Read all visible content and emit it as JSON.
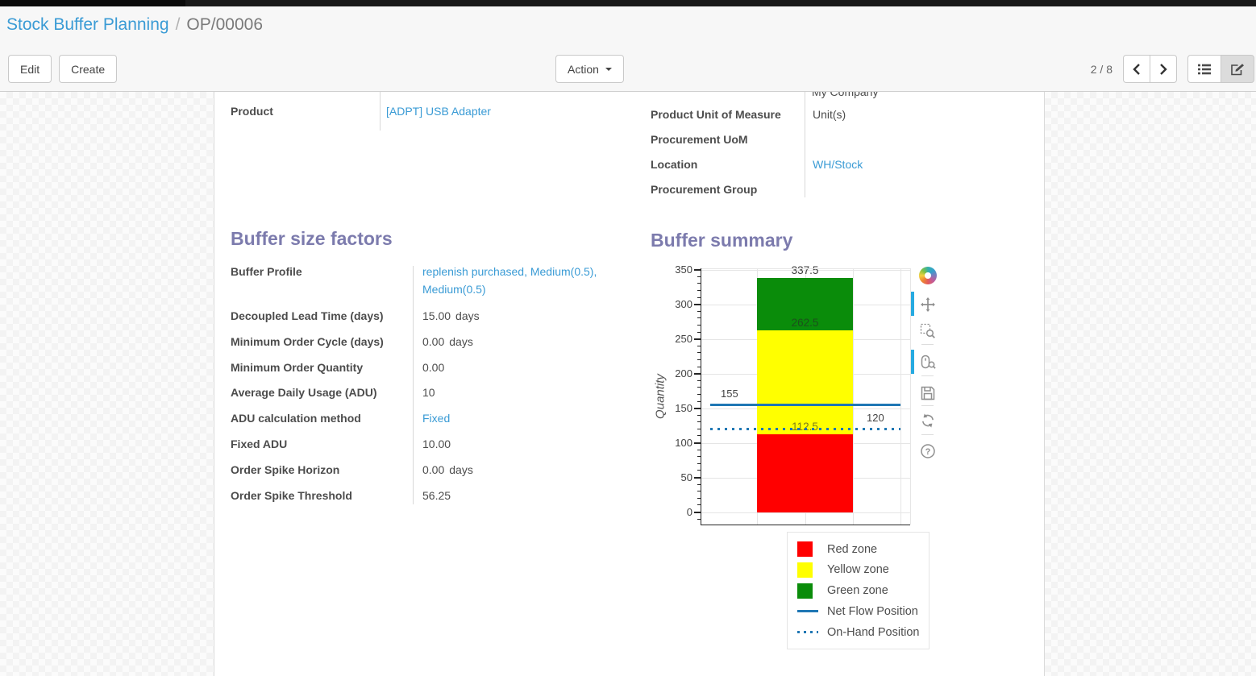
{
  "colors": {
    "link": "#3a9bd5",
    "heading_purple": "#7c7bad",
    "active_tool_blue": "#26aae1",
    "navbar_black": "#191919"
  },
  "breadcrumb": {
    "parent": "Stock Buffer Planning",
    "separator": "/",
    "current": "OP/00006"
  },
  "control_panel": {
    "edit_label": "Edit",
    "create_label": "Create",
    "action_label": "Action",
    "pager_text": "2 / 8"
  },
  "form": {
    "groups": {
      "top_left": {
        "rows": [
          {
            "label": "Product",
            "value": "[ADPT] USB Adapter",
            "link": true
          }
        ]
      },
      "top_right": {
        "clipped_value": "My Company",
        "rows": [
          {
            "label": "Product Unit of Measure",
            "value": "Unit(s)"
          },
          {
            "label": "Procurement UoM",
            "value": ""
          },
          {
            "label": "Location",
            "value": "WH/Stock",
            "link": true
          },
          {
            "label": "Procurement Group",
            "value": ""
          }
        ]
      },
      "buffer_factors": {
        "title": "Buffer size factors",
        "rows": [
          {
            "label": "Buffer Profile",
            "value": "replenish purchased, Medium(0.5), Medium(0.5)",
            "link": true,
            "tall": true
          },
          {
            "label": "Decoupled Lead Time (days)",
            "value": "15.00",
            "unit": "days"
          },
          {
            "label": "Minimum Order Cycle (days)",
            "value": "0.00",
            "unit": "days"
          },
          {
            "label": "Minimum Order Quantity",
            "value": "0.00"
          },
          {
            "label": "Average Daily Usage (ADU)",
            "value": "10"
          },
          {
            "label": "ADU calculation method",
            "value": "Fixed",
            "link": true
          },
          {
            "label": "Fixed ADU",
            "value": "10.00"
          },
          {
            "label": "Order Spike Horizon",
            "value": "0.00",
            "unit": "days"
          },
          {
            "label": "Order Spike Threshold",
            "value": "56.25"
          }
        ]
      },
      "buffer_summary": {
        "title": "Buffer summary"
      }
    }
  },
  "chart_data": {
    "type": "bar",
    "title": "Buffer summary",
    "xlabel": "",
    "ylabel": "Quantity",
    "ylim": [
      0,
      350
    ],
    "y_major_ticks": [
      0,
      50,
      100,
      150,
      200,
      250,
      300,
      350
    ],
    "y_minor_step": 10,
    "grid": true,
    "zones": [
      {
        "name": "Red zone",
        "from": 0,
        "to": 112.5,
        "color": "#ff0000"
      },
      {
        "name": "Yellow zone",
        "from": 112.5,
        "to": 262.5,
        "color": "#ffff00"
      },
      {
        "name": "Green zone",
        "from": 262.5,
        "to": 337.5,
        "color": "#0a8c0a"
      }
    ],
    "zone_top_labels": [
      "112.5",
      "262.5",
      "337.5"
    ],
    "lines": [
      {
        "name": "Net Flow Position",
        "value": 155,
        "label": "155",
        "style": "solid",
        "color": "#1f77b4",
        "label_side": "left"
      },
      {
        "name": "On-Hand Position",
        "value": 120,
        "label": "120",
        "style": "dotted",
        "color": "#1f77b4",
        "label_side": "right"
      }
    ],
    "legend": [
      "Red zone",
      "Yellow zone",
      "Green zone",
      "Net Flow Position",
      "On-Hand Position"
    ],
    "legend_position": "below-right"
  },
  "chart_toolbar": {
    "tools": [
      "bokeh-logo",
      "pan",
      "box-zoom",
      "wheel-zoom",
      "save",
      "reset",
      "help"
    ],
    "active_tools": [
      "pan",
      "wheel-zoom"
    ]
  }
}
